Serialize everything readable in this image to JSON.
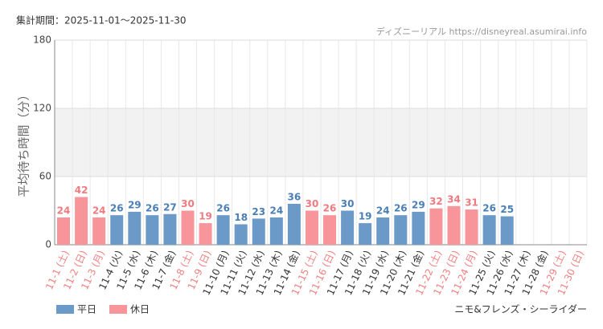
{
  "chart_data": {
    "type": "bar",
    "period": "集計期間：2025-11-01～2025-11-30",
    "source": "ディズニーリアル https://disneyreal.asumirai.info",
    "y_label": "平均待ち時間（分）",
    "attraction": "ニモ&フレンズ・シーライダー",
    "categories": [
      "11-1 (土)",
      "11-2 (日)",
      "11-3 (月)",
      "11-4 (火)",
      "11-5 (水)",
      "11-6 (木)",
      "11-7 (金)",
      "11-8 (土)",
      "11-9 (日)",
      "11-10 (月)",
      "11-11 (火)",
      "11-12 (水)",
      "11-13 (木)",
      "11-14 (金)",
      "11-15 (土)",
      "11-16 (日)",
      "11-17 (月)",
      "11-18 (火)",
      "11-19 (水)",
      "11-20 (木)",
      "11-21 (金)",
      "11-22 (土)",
      "11-23 (日)",
      "11-24 (月)",
      "11-25 (火)",
      "11-26 (水)",
      "11-27 (木)",
      "11-28 (金)",
      "11-29 (土)",
      "11-30 (日)"
    ],
    "category_label_colors": [
      "#f08080",
      "#f08080",
      "#f08080",
      "#333333",
      "#333333",
      "#333333",
      "#333333",
      "#f08080",
      "#f08080",
      "#333333",
      "#333333",
      "#333333",
      "#333333",
      "#333333",
      "#f08080",
      "#f08080",
      "#333333",
      "#333333",
      "#333333",
      "#333333",
      "#333333",
      "#f08080",
      "#f08080",
      "#f08080",
      "#333333",
      "#333333",
      "#333333",
      "#333333",
      "#f08080",
      "#f08080"
    ],
    "series": [
      {
        "name": "平日",
        "color": "#6b9ac8",
        "label_color": "#4a7fb5",
        "values": [
          null,
          null,
          null,
          26,
          29,
          26,
          27,
          null,
          null,
          26,
          18,
          23,
          24,
          36,
          null,
          null,
          30,
          19,
          24,
          26,
          29,
          null,
          null,
          null,
          26,
          25,
          null,
          null,
          null,
          null
        ]
      },
      {
        "name": "休日",
        "color": "#f7959a",
        "label_color": "#f07a80",
        "values": [
          24,
          42,
          24,
          null,
          null,
          null,
          null,
          30,
          19,
          null,
          null,
          null,
          null,
          null,
          30,
          26,
          null,
          null,
          null,
          null,
          null,
          32,
          34,
          31,
          null,
          null,
          null,
          null,
          null,
          null
        ]
      }
    ],
    "ylim": [
      0,
      180
    ],
    "yticks": [
      0,
      60,
      120,
      180
    ],
    "grid": true
  }
}
